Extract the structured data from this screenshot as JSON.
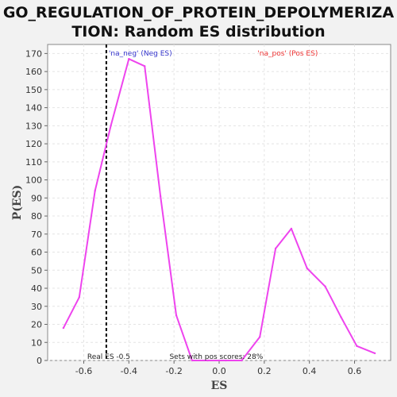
{
  "chart_data": {
    "type": "line",
    "title_lines": [
      "GO_REGULATION_OF_PROTEIN_DEPOLYMERIZA",
      "TION: Random ES distribution"
    ],
    "xlabel": "ES",
    "ylabel": "P(ES)",
    "xlim": [
      -0.76,
      0.76
    ],
    "ylim": [
      0,
      175
    ],
    "x_ticks": [
      -0.6,
      -0.4,
      -0.2,
      0.0,
      0.2,
      0.4,
      0.6
    ],
    "x_tick_labels": [
      "-0.6",
      "-0.4",
      "-0.2",
      "0.0",
      "0.2",
      "0.4",
      "0.6"
    ],
    "y_ticks": [
      0,
      10,
      20,
      30,
      40,
      50,
      60,
      70,
      80,
      90,
      100,
      110,
      120,
      130,
      140,
      150,
      160,
      170
    ],
    "y_tick_labels": [
      "0",
      "10",
      "20",
      "30",
      "40",
      "50",
      "60",
      "70",
      "80",
      "90",
      "100",
      "110",
      "120",
      "130",
      "140",
      "150",
      "160",
      "170"
    ],
    "grid": true,
    "series": [
      {
        "color": "#ee44ee",
        "x": [
          -0.69,
          -0.62,
          -0.55,
          -0.48,
          -0.4,
          -0.33,
          -0.26,
          -0.19,
          -0.12,
          -0.05,
          0.03,
          0.1,
          0.18,
          0.25,
          0.32,
          0.39,
          0.47,
          0.54,
          0.61,
          0.69
        ],
        "y": [
          18,
          35,
          94,
          130,
          167,
          163,
          91,
          25,
          0,
          0,
          0,
          0,
          13,
          62,
          73,
          51,
          41,
          24,
          8,
          4
        ]
      }
    ],
    "real_es": -0.5,
    "annotations": {
      "neg_label": "'na_neg' (Neg ES)",
      "pos_label": "'na_pos' (Pos ES)",
      "real_es_label": "Real ES -0.5",
      "pos_scores_label": "Sets with pos scores: 28%"
    },
    "colors": {
      "line": "#ee44ee",
      "neg_label": "#3333cc",
      "pos_label": "#ee3333",
      "plot_bg": "#ffffff",
      "page_bg": "#f2f2f2"
    }
  }
}
